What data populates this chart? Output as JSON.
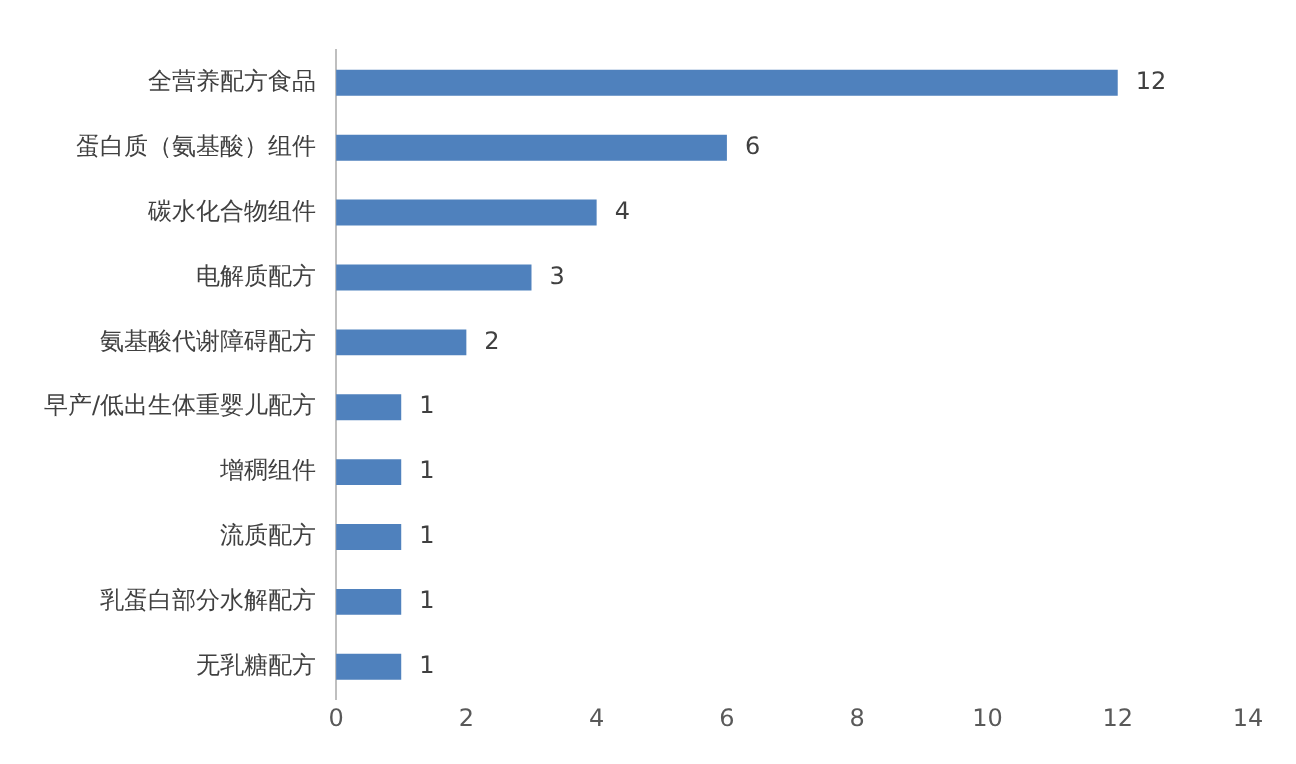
{
  "chart_data": {
    "type": "bar",
    "orientation": "horizontal",
    "categories": [
      "全营养配方食品",
      "蛋白质（氨基酸）组件",
      "碳水化合物组件",
      "电解质配方",
      "氨基酸代谢障碍配方",
      "早产/低出生体重婴儿配方",
      "增稠组件",
      "流质配方",
      "乳蛋白部分水解配方",
      "无乳糖配方"
    ],
    "values": [
      12,
      6,
      4,
      3,
      2,
      1,
      1,
      1,
      1,
      1
    ],
    "color": "#4f81bd",
    "xlim": [
      0,
      14
    ],
    "xticks": [
      0,
      2,
      4,
      6,
      8,
      10,
      12,
      14
    ],
    "data_labels": true,
    "grid": false,
    "legend": false
  }
}
